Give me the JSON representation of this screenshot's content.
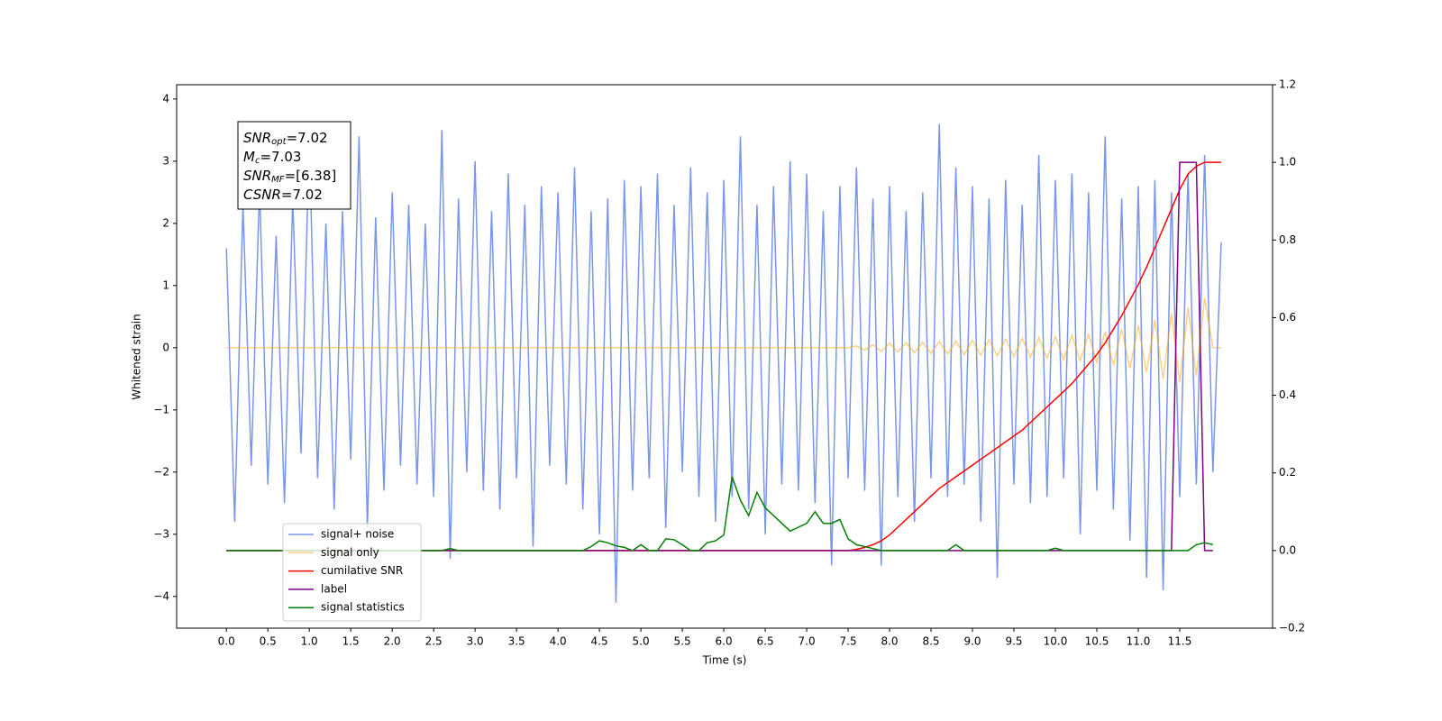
{
  "chart_data": {
    "type": "line",
    "xlabel": "Time (s)",
    "ylabel": "Whitened strain",
    "xlim": [
      -0.6,
      12.62
    ],
    "ylim": [
      -4.51,
      4.23
    ],
    "y2lim": [
      -0.2,
      1.2
    ],
    "xticks": [
      {
        "value": 0,
        "label": "0.0"
      },
      0.5,
      {
        "value": 1,
        "label": "1.0"
      },
      1.5,
      {
        "value": 2,
        "label": "2.0"
      },
      2.5,
      {
        "value": 3,
        "label": "3.0"
      },
      3.5,
      {
        "value": 4,
        "label": "4.0"
      },
      4.5,
      {
        "value": 5,
        "label": "5.0"
      },
      5.5,
      {
        "value": 6,
        "label": "6.0"
      },
      6.5,
      {
        "value": 7,
        "label": "7.0"
      },
      7.5,
      {
        "value": 8,
        "label": "8.0"
      },
      8.5,
      {
        "value": 9,
        "label": "9.0"
      },
      9.5,
      {
        "value": 10,
        "label": "10.0"
      },
      10.5,
      {
        "value": 11,
        "label": "11.0"
      },
      11.5
    ],
    "yticks": [
      {
        "value": -4,
        "label": "−4"
      },
      {
        "value": -3,
        "label": "−3"
      },
      {
        "value": -2,
        "label": "−2"
      },
      {
        "value": -1,
        "label": "−1"
      },
      0,
      1,
      2,
      3,
      4
    ],
    "y2ticks": [
      {
        "value": -0.2,
        "label": "−0.2"
      },
      {
        "value": 0,
        "label": "0.0"
      },
      0.2,
      0.4,
      0.6,
      0.8,
      {
        "value": 1,
        "label": "1.0"
      },
      1.2
    ],
    "legend": "lower left",
    "annotation": [
      {
        "name": "SNR",
        "sub": "opt",
        "text": "=7.02"
      },
      {
        "name": "M",
        "sub": "c",
        "text": "=7.03"
      },
      {
        "name": "SNR",
        "sub": "MF",
        "text": "=[6.38]"
      },
      {
        "name": "CSNR",
        "text": "=7.02"
      }
    ],
    "x": [
      0.0,
      0.1,
      0.2,
      0.3,
      0.4,
      0.5,
      0.6,
      0.7,
      0.8,
      0.9,
      1.0,
      1.1,
      1.2,
      1.3,
      1.4,
      1.5,
      1.6,
      1.7,
      1.8,
      1.9,
      2.0,
      2.1,
      2.2,
      2.3,
      2.4,
      2.5,
      2.6,
      2.7,
      2.8,
      2.9,
      3.0,
      3.1,
      3.2,
      3.3,
      3.4,
      3.5,
      3.6,
      3.7,
      3.8,
      3.9,
      4.0,
      4.1,
      4.2,
      4.3,
      4.4,
      4.5,
      4.6,
      4.7,
      4.8,
      4.9,
      5.0,
      5.1,
      5.2,
      5.3,
      5.4,
      5.5,
      5.6,
      5.7,
      5.8,
      5.9,
      6.0,
      6.1,
      6.2,
      6.3,
      6.4,
      6.5,
      6.6,
      6.7,
      6.8,
      6.9,
      7.0,
      7.1,
      7.2,
      7.3,
      7.4,
      7.5,
      7.6,
      7.7,
      7.8,
      7.9,
      8.0,
      8.1,
      8.2,
      8.3,
      8.4,
      8.5,
      8.6,
      8.7,
      8.8,
      8.9,
      9.0,
      9.1,
      9.2,
      9.3,
      9.4,
      9.5,
      9.6,
      9.7,
      9.8,
      9.9,
      10.0,
      10.1,
      10.2,
      10.3,
      10.4,
      10.5,
      10.6,
      10.7,
      10.8,
      10.9,
      11.0,
      11.1,
      11.2,
      11.3,
      11.4,
      11.5,
      11.6,
      11.7,
      11.8,
      11.9,
      12.0
    ],
    "series": [
      {
        "name": "signal+ noise",
        "color": "#4169e1",
        "alpha": 0.7,
        "values": [
          1.6,
          -2.8,
          2.3,
          -1.9,
          2.6,
          -2.2,
          1.8,
          -2.5,
          2.4,
          -1.7,
          3.4,
          -2.1,
          2.0,
          -2.6,
          2.2,
          -1.8,
          3.4,
          -2.9,
          2.1,
          -2.3,
          2.5,
          -1.9,
          2.3,
          -2.2,
          2.0,
          -2.4,
          3.5,
          -3.4,
          2.4,
          -2.0,
          3.0,
          -2.3,
          2.2,
          -2.6,
          2.8,
          -2.1,
          2.3,
          -3.2,
          2.6,
          -1.9,
          2.5,
          -2.2,
          2.9,
          -2.6,
          2.2,
          -3.0,
          2.4,
          -4.1,
          2.7,
          -2.3,
          2.6,
          -2.1,
          2.8,
          -2.9,
          2.3,
          -2.0,
          2.9,
          -2.4,
          2.5,
          -2.8,
          2.7,
          -2.4,
          3.4,
          -2.6,
          2.3,
          -3.0,
          2.6,
          -2.2,
          3.0,
          -2.3,
          2.8,
          -2.5,
          2.2,
          -3.5,
          2.6,
          -2.1,
          2.9,
          -2.3,
          2.4,
          -3.5,
          2.6,
          -2.4,
          2.2,
          -2.8,
          2.5,
          -2.1,
          3.6,
          -2.4,
          2.9,
          -2.2,
          2.6,
          -2.8,
          2.4,
          -3.7,
          2.7,
          -2.2,
          2.3,
          -2.5,
          3.1,
          -2.4,
          2.7,
          -2.1,
          2.8,
          -3.0,
          2.5,
          -2.3,
          3.4,
          -2.6,
          2.4,
          -3.1,
          2.6,
          -3.7,
          2.7,
          -3.9,
          2.5,
          -2.4,
          2.8,
          -2.2,
          3.1,
          -2.0,
          1.7
        ]
      },
      {
        "name": "signal only",
        "color": "#ffa500",
        "alpha": 0.5,
        "values": [
          0,
          0,
          0,
          0,
          0,
          0,
          0,
          0,
          0,
          0,
          0,
          0,
          0,
          0,
          0,
          0,
          0,
          0,
          0,
          0,
          0,
          0,
          0,
          0,
          0,
          0,
          0,
          0,
          0,
          0,
          0,
          0,
          0,
          0,
          0,
          0,
          0,
          0,
          0,
          0,
          0,
          0,
          0,
          0,
          0,
          0,
          0,
          0,
          0,
          0,
          0,
          0,
          0,
          0,
          0,
          0,
          0,
          0,
          0,
          0,
          0,
          0,
          0,
          0,
          0,
          0,
          0,
          0,
          0,
          0,
          0,
          0,
          0,
          0,
          0,
          0,
          0.03,
          -0.04,
          0.05,
          -0.06,
          0.07,
          -0.07,
          0.08,
          -0.08,
          0.09,
          -0.09,
          0.1,
          -0.1,
          0.11,
          -0.11,
          0.12,
          -0.12,
          0.13,
          -0.13,
          0.14,
          -0.14,
          0.15,
          -0.15,
          0.16,
          -0.17,
          0.18,
          -0.19,
          0.2,
          -0.21,
          0.22,
          -0.24,
          0.26,
          -0.28,
          0.3,
          -0.33,
          0.36,
          -0.4,
          0.45,
          -0.5,
          0.55,
          -0.55,
          0.65,
          -0.45,
          0.8,
          0,
          0
        ]
      },
      {
        "name": "cumilative SNR",
        "color": "#ff0000",
        "axis": "y2",
        "alpha": 1,
        "values": [
          0,
          0,
          0,
          0,
          0,
          0,
          0,
          0,
          0,
          0,
          0,
          0,
          0,
          0,
          0,
          0,
          0,
          0,
          0,
          0,
          0,
          0,
          0,
          0,
          0,
          0,
          0,
          0,
          0,
          0,
          0,
          0,
          0,
          0,
          0,
          0,
          0,
          0,
          0,
          0,
          0,
          0,
          0,
          0,
          0,
          0,
          0,
          0,
          0,
          0,
          0,
          0,
          0,
          0,
          0,
          0,
          0,
          0,
          0,
          0,
          0,
          0,
          0,
          0,
          0,
          0,
          0,
          0,
          0,
          0,
          0,
          0,
          0,
          0,
          0,
          0,
          0.003,
          0.008,
          0.015,
          0.025,
          0.04,
          0.06,
          0.08,
          0.1,
          0.12,
          0.14,
          0.16,
          0.175,
          0.19,
          0.205,
          0.22,
          0.235,
          0.25,
          0.265,
          0.28,
          0.295,
          0.31,
          0.33,
          0.35,
          0.37,
          0.39,
          0.41,
          0.43,
          0.455,
          0.48,
          0.505,
          0.535,
          0.57,
          0.605,
          0.645,
          0.685,
          0.73,
          0.78,
          0.83,
          0.88,
          0.93,
          0.97,
          0.99,
          1.0,
          1.0,
          1.0
        ]
      },
      {
        "name": "label",
        "color": "#800080",
        "axis": "y2",
        "alpha": 1,
        "values": [
          0,
          0,
          0,
          0,
          0,
          0,
          0,
          0,
          0,
          0,
          0,
          0,
          0,
          0,
          0,
          0,
          0,
          0,
          0,
          0,
          0,
          0,
          0,
          0,
          0,
          0,
          0,
          0,
          0,
          0,
          0,
          0,
          0,
          0,
          0,
          0,
          0,
          0,
          0,
          0,
          0,
          0,
          0,
          0,
          0,
          0,
          0,
          0,
          0,
          0,
          0,
          0,
          0,
          0,
          0,
          0,
          0,
          0,
          0,
          0,
          0,
          0,
          0,
          0,
          0,
          0,
          0,
          0,
          0,
          0,
          0,
          0,
          0,
          0,
          0,
          0,
          0,
          0,
          0,
          0,
          0,
          0,
          0,
          0,
          0,
          0,
          0,
          0,
          0,
          0,
          0,
          0,
          0,
          0,
          0,
          0,
          0,
          0,
          0,
          0,
          0,
          0,
          0,
          0,
          0,
          0,
          0,
          0,
          0,
          0,
          0,
          0,
          0,
          0,
          0,
          1,
          1,
          1,
          0,
          0,
          null
        ]
      },
      {
        "name": "signal statistics",
        "color": "#008000",
        "axis": "y2",
        "alpha": 1,
        "values": [
          0,
          0,
          0,
          0,
          0,
          0,
          0,
          0,
          0,
          0,
          0,
          0,
          0,
          0,
          0,
          0,
          0,
          0,
          0,
          0,
          0,
          0,
          0,
          0,
          0,
          0,
          0,
          0.005,
          0,
          0,
          0,
          0,
          0,
          0,
          0,
          0,
          0,
          0,
          0,
          0,
          0,
          0,
          0,
          0,
          0.01,
          0.025,
          0.02,
          0.012,
          0.008,
          0,
          0.015,
          0,
          0,
          0.03,
          0.028,
          0.015,
          0,
          0,
          0.02,
          0.025,
          0.04,
          0.19,
          0.13,
          0.09,
          0.15,
          0.11,
          0.09,
          0.07,
          0.05,
          0.06,
          0.07,
          0.1,
          0.07,
          0.07,
          0.08,
          0.03,
          0.015,
          0.01,
          0.005,
          0,
          0,
          0,
          0,
          0,
          0,
          0,
          0,
          0,
          0.015,
          0,
          0,
          0,
          0,
          0,
          0,
          0,
          0,
          0,
          0,
          0,
          0.006,
          0,
          0,
          0,
          0,
          0,
          0,
          0,
          0,
          0,
          0,
          0,
          0,
          0,
          0,
          0,
          0,
          0.015,
          0.02,
          0.015,
          null
        ]
      }
    ]
  }
}
